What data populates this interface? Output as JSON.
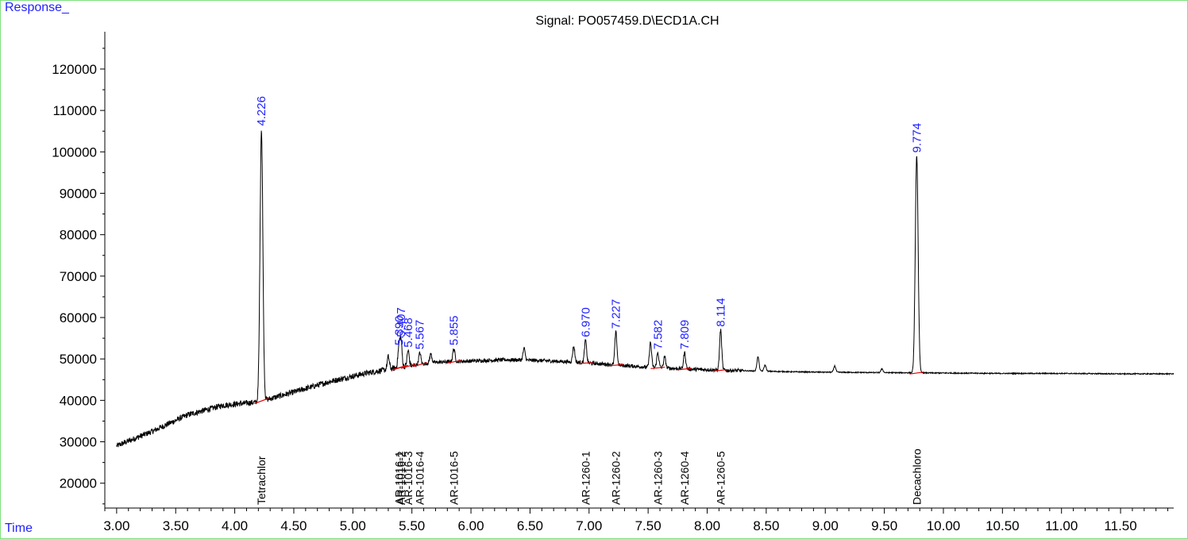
{
  "header": {
    "y_label": "Response_",
    "x_label": "Time",
    "title": "Signal: PO057459.D\\ECD1A.CH"
  },
  "colors": {
    "trace": "#000000",
    "baseline": "#e00000",
    "rt_label": "#1f1fff",
    "compound_label": "#000000",
    "axis": "#000000",
    "frame": "#7fe07f"
  },
  "chart_data": {
    "type": "line",
    "title": "Signal: PO057459.D\\ECD1A.CH",
    "xlabel": "Time",
    "ylabel": "Response_",
    "xlim": [
      2.9,
      11.95
    ],
    "ylim": [
      14000,
      129000
    ],
    "x_ticks": [
      "3.00",
      "3.50",
      "4.00",
      "4.50",
      "5.00",
      "5.50",
      "6.00",
      "6.50",
      "7.00",
      "7.50",
      "8.00",
      "8.50",
      "9.00",
      "9.50",
      "10.00",
      "10.50",
      "11.00",
      "11.50"
    ],
    "x_tick_values": [
      3.0,
      3.5,
      4.0,
      4.5,
      5.0,
      5.5,
      6.0,
      6.5,
      7.0,
      7.5,
      8.0,
      8.5,
      9.0,
      9.5,
      10.0,
      10.5,
      11.0,
      11.5
    ],
    "y_ticks": [
      "20000",
      "30000",
      "40000",
      "50000",
      "60000",
      "70000",
      "80000",
      "90000",
      "100000",
      "110000",
      "120000"
    ],
    "y_tick_values": [
      20000,
      30000,
      40000,
      50000,
      60000,
      70000,
      80000,
      90000,
      100000,
      110000,
      120000
    ],
    "grid": false,
    "baseline_points": [
      [
        3.0,
        29000
      ],
      [
        3.3,
        32500
      ],
      [
        3.6,
        36500
      ],
      [
        3.9,
        38800
      ],
      [
        4.2,
        39600
      ],
      [
        4.5,
        42000
      ],
      [
        4.8,
        44500
      ],
      [
        5.1,
        46500
      ],
      [
        5.4,
        48000
      ],
      [
        5.7,
        49200
      ],
      [
        6.0,
        49500
      ],
      [
        6.3,
        49800
      ],
      [
        6.6,
        49600
      ],
      [
        6.9,
        49200
      ],
      [
        7.2,
        48600
      ],
      [
        7.5,
        48000
      ],
      [
        7.8,
        47600
      ],
      [
        8.1,
        47300
      ],
      [
        8.4,
        47100
      ],
      [
        8.7,
        46900
      ],
      [
        9.0,
        46800
      ],
      [
        9.5,
        46700
      ],
      [
        10.0,
        46600
      ],
      [
        10.5,
        46500
      ],
      [
        11.0,
        46500
      ],
      [
        11.5,
        46400
      ],
      [
        11.95,
        46400
      ]
    ],
    "peaks": [
      {
        "rt": 4.226,
        "rt_label": "4.226",
        "height": 105500,
        "compound": "Tetrachlor"
      },
      {
        "rt": 5.39,
        "rt_label": "5.390",
        "height": 52500,
        "compound": "AR-1016-1"
      },
      {
        "rt": 5.407,
        "rt_label": "5.407",
        "height": 54500,
        "compound": "AR-1016-2"
      },
      {
        "rt": 5.468,
        "rt_label": "5.468",
        "height": 52000,
        "compound": "AR-1016-3"
      },
      {
        "rt": 5.567,
        "rt_label": "5.567",
        "height": 51500,
        "compound": "AR-1016-4"
      },
      {
        "rt": 5.855,
        "rt_label": "5.855",
        "height": 52500,
        "compound": "AR-1016-5"
      },
      {
        "rt": 6.97,
        "rt_label": "6.970",
        "height": 54500,
        "compound": "AR-1260-1"
      },
      {
        "rt": 7.227,
        "rt_label": "7.227",
        "height": 56500,
        "compound": "AR-1260-2"
      },
      {
        "rt": 7.582,
        "rt_label": "7.582",
        "height": 51500,
        "compound": "AR-1260-3"
      },
      {
        "rt": 7.809,
        "rt_label": "7.809",
        "height": 51500,
        "compound": "AR-1260-4"
      },
      {
        "rt": 8.114,
        "rt_label": "8.114",
        "height": 57000,
        "compound": "AR-1260-5"
      },
      {
        "rt": 9.774,
        "rt_label": "9.774",
        "height": 99000,
        "compound": "Decachloro"
      }
    ],
    "minor_peaks": [
      {
        "rt": 5.3,
        "height": 50500
      },
      {
        "rt": 5.66,
        "height": 51200
      },
      {
        "rt": 6.45,
        "height": 52500
      },
      {
        "rt": 6.87,
        "height": 53000
      },
      {
        "rt": 7.52,
        "height": 54000
      },
      {
        "rt": 7.64,
        "height": 50500
      },
      {
        "rt": 8.43,
        "height": 50500
      },
      {
        "rt": 8.49,
        "height": 48500
      },
      {
        "rt": 9.08,
        "height": 48300
      },
      {
        "rt": 9.48,
        "height": 47600
      }
    ]
  }
}
